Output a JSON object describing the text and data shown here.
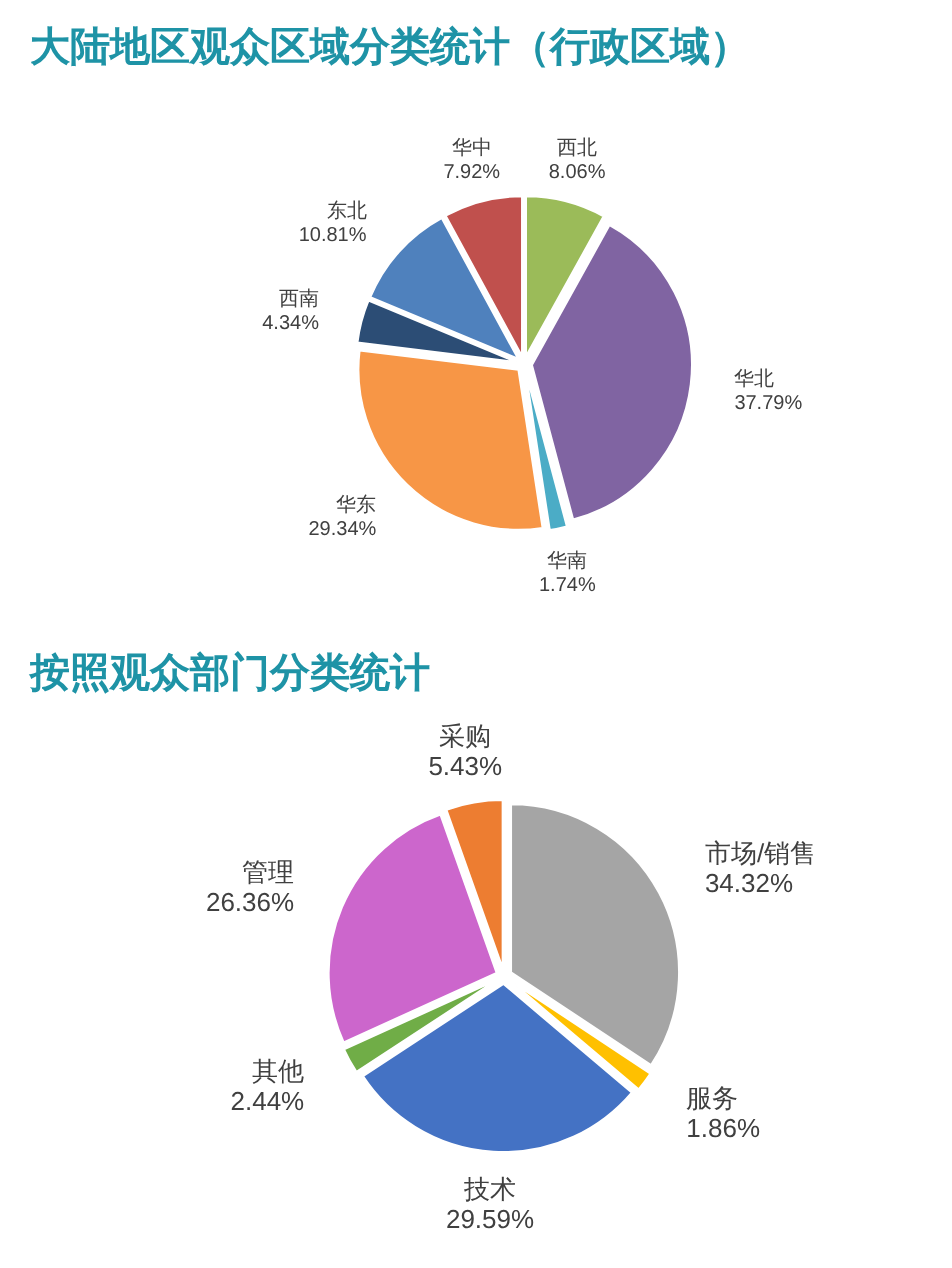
{
  "chart_data": [
    {
      "type": "pie",
      "title": "大陆地区观众区域分类统计（行政区域）",
      "categories": [
        "西北",
        "华北",
        "华南",
        "华东",
        "西南",
        "东北",
        "华中"
      ],
      "values": [
        8.06,
        37.79,
        1.74,
        29.34,
        4.34,
        10.81,
        7.92
      ],
      "value_labels": [
        "8.06%",
        "37.79%",
        "1.74%",
        "29.34%",
        "4.34%",
        "10.81%",
        "7.92%"
      ],
      "colors": [
        "#9bbb59",
        "#8064a2",
        "#4bacc6",
        "#f79646",
        "#2c4d75",
        "#4f81bd",
        "#c0504d"
      ]
    },
    {
      "type": "pie",
      "title": "按照观众部门分类统计",
      "categories": [
        "市场/销售",
        "服务",
        "技术",
        "其他",
        "管理",
        "采购"
      ],
      "values": [
        34.32,
        1.86,
        29.59,
        2.44,
        26.36,
        5.43
      ],
      "value_labels": [
        "34.32%",
        "1.86%",
        "29.59%",
        "2.44%",
        "26.36%",
        "5.43%"
      ],
      "colors": [
        "#a5a5a5",
        "#ffc000",
        "#4472c4",
        "#70ad47",
        "#cc66cc",
        "#ed7d31"
      ]
    }
  ]
}
